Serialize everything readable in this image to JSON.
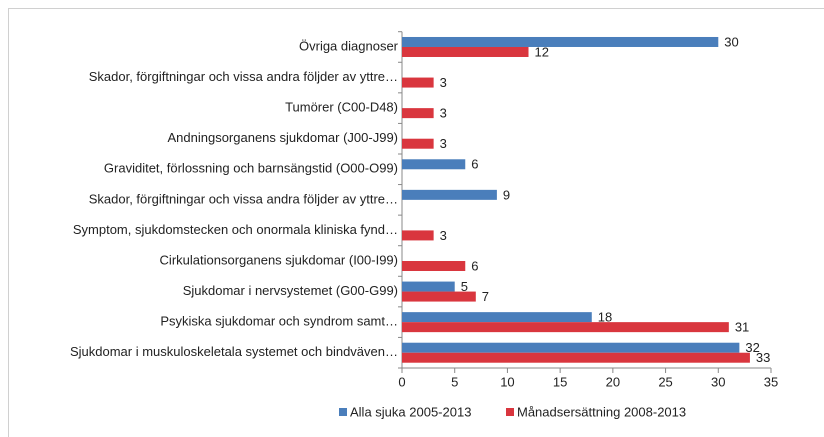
{
  "chart_data": {
    "type": "bar",
    "orientation": "horizontal",
    "categories": [
      "Övriga diagnoser",
      "Skador, förgiftningar och vissa andra följder av yttre…",
      "Tumörer (C00-D48)",
      "Andningsorganens sjukdomar (J00-J99)",
      "Graviditet, förlossning och barnsängstid (O00-O99)",
      "Skador, förgiftningar och vissa andra följder av yttre…",
      "Symptom, sjukdomstecken och onormala kliniska fynd…",
      "Cirkulationsorganens sjukdomar (I00-I99)",
      "Sjukdomar i nervsystemet (G00-G99)",
      "Psykiska sjukdomar och syndrom samt…",
      "Sjukdomar i muskuloskeletala systemet och bindväven…"
    ],
    "series": [
      {
        "name": "Alla sjuka 2005-2013",
        "color": "#4a7ebb",
        "values": [
          30,
          null,
          null,
          null,
          6,
          9,
          null,
          null,
          5,
          18,
          32
        ]
      },
      {
        "name": "Månadsersättning 2008-2013",
        "color": "#d9363e",
        "values": [
          12,
          3,
          3,
          3,
          null,
          null,
          3,
          6,
          7,
          31,
          33
        ]
      }
    ],
    "xlim": [
      0,
      35
    ],
    "xticks": [
      0,
      5,
      10,
      15,
      20,
      25,
      30,
      35
    ],
    "legend": "bottom"
  }
}
